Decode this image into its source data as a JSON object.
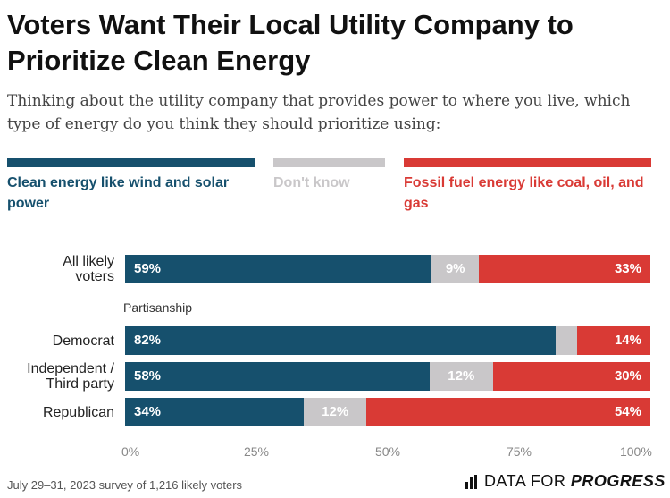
{
  "header": {
    "title": "Voters Want Their Local Utility Company to Prioritize Clean Energy",
    "subtitle": "Thinking about the utility company that provides power to where you live, which type of energy do you think they should prioritize using:"
  },
  "colors": {
    "clean": "#16506d",
    "dontknow": "#c9c7c9",
    "fossil": "#d93a35",
    "background": "#ffffff"
  },
  "chart_data": {
    "type": "bar",
    "orientation": "horizontal",
    "stacked": true,
    "categories": [
      "All likely voters",
      "Democrat",
      "Independent / Third party",
      "Republican"
    ],
    "group_label": "Partisanship",
    "series": [
      {
        "name": "Clean energy like wind and solar power",
        "values": [
          59,
          82,
          58,
          34
        ],
        "labels": [
          "59%",
          "82%",
          "58%",
          "34%"
        ]
      },
      {
        "name": "Don't know",
        "values": [
          9,
          4,
          12,
          12
        ],
        "labels": [
          "9%",
          "",
          "12%",
          "12%"
        ]
      },
      {
        "name": "Fossil fuel energy like coal, oil, and gas",
        "values": [
          33,
          14,
          30,
          54
        ],
        "labels": [
          "33%",
          "14%",
          "30%",
          "54%"
        ]
      }
    ],
    "xlim": [
      0,
      100
    ],
    "ticks": [
      "0%",
      "25%",
      "50%",
      "75%",
      "100%"
    ],
    "legend_position": "top"
  },
  "footer": {
    "source": "July 29–31, 2023 survey of 1,216 likely voters",
    "brand_light": "DATA FOR",
    "brand_strong": "PROGRESS"
  }
}
